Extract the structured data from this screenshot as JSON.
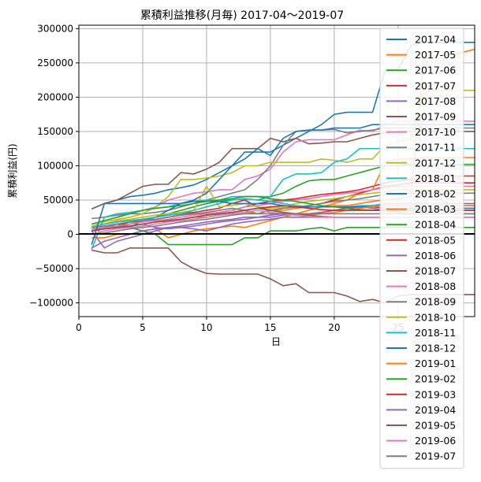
{
  "chart_data": {
    "type": "line",
    "title": "累積利益推移(月毎)  2017-04〜2019-07",
    "xlabel": "日",
    "ylabel": "累積利益(円)",
    "xlim": [
      0,
      31
    ],
    "ylim": [
      -120000,
      305000
    ],
    "xticks": [
      0,
      5,
      10,
      15,
      20,
      25
    ],
    "yticks": [
      -100000,
      -50000,
      0,
      50000,
      100000,
      150000,
      200000,
      250000,
      300000
    ],
    "grid": true,
    "legend_position": "right-upper",
    "x": [
      1,
      2,
      3,
      4,
      5,
      6,
      7,
      8,
      9,
      10,
      11,
      12,
      13,
      14,
      15,
      16,
      17,
      18,
      19,
      20,
      21,
      22,
      23,
      24,
      25,
      26,
      27,
      28,
      29,
      30,
      31
    ],
    "series": [
      {
        "name": "2017-04",
        "color": "#1f77b4",
        "values": [
          37000,
          45000,
          50000,
          55000,
          57000,
          60000,
          65000,
          68000,
          72000,
          80000,
          90000,
          100000,
          120000,
          120000,
          120000,
          130000,
          140000,
          150000,
          160000,
          175000,
          178000,
          178000,
          178000,
          240000,
          240000,
          275000,
          280000,
          280000,
          280000,
          280000,
          280000
        ]
      },
      {
        "name": "2017-05",
        "color": "#ff7f0e",
        "values": [
          10000,
          15000,
          18000,
          20000,
          22000,
          20000,
          18000,
          22000,
          25000,
          25000,
          28000,
          30000,
          32000,
          30000,
          35000,
          35000,
          38000,
          40000,
          40000,
          42000,
          42000,
          45000,
          48000,
          50000,
          52000,
          55000,
          255000,
          260000,
          262000,
          265000,
          270000
        ]
      },
      {
        "name": "2017-06",
        "color": "#2ca02c",
        "values": [
          5000,
          8000,
          10000,
          15000,
          20000,
          25000,
          30000,
          35000,
          40000,
          45000,
          48000,
          50000,
          52000,
          50000,
          55000,
          60000,
          70000,
          78000,
          80000,
          80000,
          85000,
          90000,
          95000,
          100000,
          100000,
          102000,
          102000,
          102000,
          102000,
          102000,
          102000
        ]
      },
      {
        "name": "2017-07",
        "color": "#d62728",
        "values": [
          10000,
          12000,
          15000,
          18000,
          20000,
          22000,
          25000,
          28000,
          30000,
          30000,
          32000,
          35000,
          40000,
          45000,
          48000,
          50000,
          52000,
          55000,
          58000,
          60000,
          62000,
          65000,
          70000,
          75000,
          78000,
          80000,
          82000,
          85000,
          85000,
          85000,
          85000
        ]
      },
      {
        "name": "2017-08",
        "color": "#9467bd",
        "values": [
          5000,
          8000,
          10000,
          12000,
          15000,
          10000,
          8000,
          10000,
          12000,
          15000,
          18000,
          20000,
          22000,
          25000,
          25000,
          28000,
          30000,
          30000,
          32000,
          35000,
          38000,
          40000,
          38000,
          35000,
          32000,
          30000,
          30000,
          30000,
          30000,
          30000,
          30000
        ]
      },
      {
        "name": "2017-09",
        "color": "#8c564b",
        "values": [
          37000,
          45000,
          50000,
          60000,
          70000,
          73000,
          73000,
          90000,
          88000,
          95000,
          105000,
          125000,
          125000,
          125000,
          140000,
          135000,
          140000,
          132000,
          133000,
          135000,
          135000,
          140000,
          145000,
          148000,
          150000,
          150000,
          150000,
          150000,
          150000,
          150000,
          150000
        ]
      },
      {
        "name": "2017-10",
        "color": "#e377c2",
        "values": [
          15000,
          20000,
          25000,
          30000,
          35000,
          40000,
          50000,
          55000,
          60000,
          62000,
          65000,
          65000,
          80000,
          85000,
          95000,
          120000,
          135000,
          138000,
          138000,
          138000,
          145000,
          152000,
          150000,
          160000,
          165000,
          165000,
          165000,
          165000,
          165000,
          165000,
          165000
        ]
      },
      {
        "name": "2017-11",
        "color": "#7f7f7f",
        "values": [
          23000,
          25000,
          28000,
          30000,
          30000,
          32000,
          35000,
          40000,
          45000,
          50000,
          55000,
          60000,
          65000,
          80000,
          100000,
          130000,
          150000,
          152000,
          152000,
          153000,
          148000,
          150000,
          152000,
          155000,
          155000,
          155000,
          155000,
          155000,
          155000,
          155000,
          155000
        ]
      },
      {
        "name": "2017-12",
        "color": "#bcbd22",
        "values": [
          12000,
          18000,
          22000,
          25000,
          30000,
          40000,
          55000,
          80000,
          80000,
          82000,
          85000,
          90000,
          100000,
          100000,
          105000,
          105000,
          105000,
          105000,
          110000,
          108000,
          105000,
          110000,
          110000,
          130000,
          135000,
          140000,
          205000,
          210000,
          210000,
          210000,
          210000
        ]
      },
      {
        "name": "2018-01",
        "color": "#17becf",
        "values": [
          -22000,
          25000,
          30000,
          32000,
          35000,
          38000,
          40000,
          45000,
          48000,
          50000,
          50000,
          55000,
          55000,
          55000,
          55000,
          80000,
          88000,
          88000,
          90000,
          105000,
          110000,
          125000,
          125000,
          125000,
          125000,
          125000,
          125000,
          125000,
          125000,
          125000,
          125000
        ]
      },
      {
        "name": "2018-02",
        "color": "#1f77b4",
        "values": [
          5000,
          10000,
          15000,
          10000,
          20000,
          25000,
          35000,
          45000,
          50000,
          60000,
          80000,
          100000,
          110000,
          125000,
          115000,
          140000,
          150000,
          152000,
          152000,
          155000,
          155000,
          155000,
          160000,
          160000,
          160000,
          160000,
          160000,
          160000,
          160000,
          160000,
          160000
        ]
      },
      {
        "name": "2018-03",
        "color": "#ff7f0e",
        "values": [
          -5000,
          -5000,
          0,
          0,
          5000,
          8000,
          -5000,
          0,
          5000,
          8000,
          10000,
          12000,
          10000,
          15000,
          20000,
          25000,
          30000,
          35000,
          40000,
          45000,
          50000,
          60000,
          65000,
          105000,
          110000,
          110000,
          112000,
          112000,
          112000,
          112000,
          112000
        ]
      },
      {
        "name": "2018-04",
        "color": "#2ca02c",
        "values": [
          10000,
          12000,
          15000,
          10000,
          5000,
          0,
          -15000,
          -15000,
          -15000,
          -15000,
          -15000,
          -15000,
          -5000,
          -5000,
          5000,
          5000,
          5000,
          8000,
          10000,
          5000,
          10000,
          10000,
          10000,
          10000,
          10000,
          10000,
          10000,
          10000,
          10000,
          10000,
          10000
        ]
      },
      {
        "name": "2018-05",
        "color": "#d62728",
        "values": [
          5000,
          10000,
          12000,
          18000,
          22000,
          25000,
          28000,
          30000,
          32000,
          35000,
          38000,
          45000,
          50000,
          40000,
          35000,
          38000,
          40000,
          42000,
          45000,
          50000,
          55000,
          60000,
          65000,
          70000,
          72000,
          75000,
          75000,
          75000,
          75000,
          75000,
          75000
        ]
      },
      {
        "name": "2018-06",
        "color": "#9467bd",
        "values": [
          -20000,
          -10000,
          -5000,
          0,
          5000,
          8000,
          10000,
          12000,
          15000,
          18000,
          20000,
          22000,
          25000,
          25000,
          28000,
          30000,
          30000,
          30000,
          32000,
          35000,
          38000,
          40000,
          42000,
          45000,
          45000,
          45000,
          45000,
          45000,
          45000,
          45000,
          45000
        ]
      },
      {
        "name": "2018-07",
        "color": "#8c564b",
        "values": [
          -23000,
          -27000,
          -27000,
          -20000,
          -20000,
          -20000,
          -20000,
          -40000,
          -50000,
          -57000,
          -58000,
          -58000,
          -58000,
          -58000,
          -65000,
          -75000,
          -72000,
          -85000,
          -85000,
          -85000,
          -90000,
          -98000,
          -95000,
          -100000,
          -90000,
          -88000,
          -88000,
          -88000,
          -88000,
          -88000,
          -88000
        ]
      },
      {
        "name": "2018-08",
        "color": "#e377c2",
        "values": [
          8000,
          10000,
          12000,
          15000,
          18000,
          20000,
          22000,
          25000,
          28000,
          30000,
          32000,
          35000,
          40000,
          42000,
          45000,
          48000,
          50000,
          52000,
          55000,
          58000,
          60000,
          62000,
          65000,
          68000,
          70000,
          70000,
          70000,
          70000,
          70000,
          70000,
          70000
        ]
      },
      {
        "name": "2018-09",
        "color": "#7f7f7f",
        "values": [
          10000,
          12000,
          15000,
          18000,
          20000,
          22000,
          25000,
          28000,
          30000,
          32000,
          35000,
          38000,
          35000,
          30000,
          35000,
          38000,
          40000,
          42000,
          45000,
          48000,
          50000,
          52000,
          55000,
          58000,
          60000,
          60000,
          60000,
          60000,
          60000,
          60000,
          60000
        ]
      },
      {
        "name": "2018-10",
        "color": "#bcbd22",
        "values": [
          10000,
          15000,
          20000,
          22000,
          25000,
          28000,
          30000,
          32000,
          35000,
          70000,
          40000,
          42000,
          45000,
          40000,
          38000,
          40000,
          45000,
          48000,
          50000,
          52000,
          55000,
          58000,
          60000,
          62000,
          65000,
          65000,
          65000,
          65000,
          65000,
          65000,
          65000
        ]
      },
      {
        "name": "2018-11",
        "color": "#17becf",
        "values": [
          10000,
          15000,
          18000,
          20000,
          22000,
          25000,
          28000,
          30000,
          35000,
          40000,
          45000,
          50000,
          52000,
          50000,
          48000,
          45000,
          42000,
          40000,
          40000,
          40000,
          40000,
          42000,
          42000,
          42000,
          42000,
          42000,
          42000,
          42000,
          42000,
          42000,
          42000
        ]
      },
      {
        "name": "2018-12",
        "color": "#1f77b4",
        "values": [
          -15000,
          45000,
          45000,
          45000,
          45000,
          45000,
          45000,
          45000,
          48000,
          48000,
          48000,
          45000,
          45000,
          45000,
          45000,
          42000,
          40000,
          40000,
          40000,
          40000,
          40000,
          40000,
          40000,
          38000,
          38000,
          38000,
          38000,
          38000,
          38000,
          38000,
          38000
        ]
      },
      {
        "name": "2019-01",
        "color": "#ff7f0e",
        "values": [
          5000,
          8000,
          10000,
          12000,
          15000,
          18000,
          20000,
          22000,
          25000,
          28000,
          30000,
          32000,
          35000,
          38000,
          35000,
          32000,
          30000,
          28000,
          30000,
          32000,
          35000,
          38000,
          40000,
          42000,
          42000,
          42000,
          42000,
          42000,
          42000,
          42000,
          42000
        ]
      },
      {
        "name": "2019-02",
        "color": "#2ca02c",
        "values": [
          15000,
          20000,
          25000,
          30000,
          35000,
          38000,
          40000,
          42000,
          45000,
          48000,
          50000,
          52000,
          55000,
          55000,
          52000,
          50000,
          48000,
          45000,
          42000,
          40000,
          38000,
          36000,
          35000,
          35000,
          35000,
          35000,
          35000,
          35000,
          35000,
          35000,
          35000
        ]
      },
      {
        "name": "2019-03",
        "color": "#d62728",
        "values": [
          5000,
          8000,
          10000,
          12000,
          15000,
          18000,
          20000,
          22000,
          25000,
          28000,
          30000,
          32000,
          35000,
          38000,
          40000,
          42000,
          40000,
          38000,
          36000,
          35000,
          35000,
          35000,
          35000,
          35000,
          35000,
          35000,
          35000,
          35000,
          35000,
          35000,
          35000
        ]
      },
      {
        "name": "2019-04",
        "color": "#9467bd",
        "values": [
          5000,
          -20000,
          -10000,
          -5000,
          0,
          5000,
          10000,
          10000,
          8000,
          5000,
          10000,
          15000,
          18000,
          20000,
          22000,
          25000,
          25000,
          25000,
          25000,
          25000,
          25000,
          25000,
          25000,
          25000,
          25000,
          25000,
          25000,
          25000,
          25000,
          25000,
          25000
        ]
      },
      {
        "name": "2019-05",
        "color": "#8c564b",
        "values": [
          5000,
          8000,
          10000,
          12000,
          15000,
          18000,
          20000,
          22000,
          25000,
          28000,
          30000,
          32000,
          35000,
          38000,
          35000,
          32000,
          30000,
          28000,
          26000,
          25000,
          25000,
          25000,
          25000,
          25000,
          25000,
          25000,
          25000,
          25000,
          25000,
          25000,
          25000
        ]
      },
      {
        "name": "2019-06",
        "color": "#e377c2",
        "values": [
          0,
          5000,
          8000,
          10000,
          12000,
          15000,
          18000,
          20000,
          22000,
          25000,
          28000,
          30000,
          32000,
          35000,
          32000,
          30000,
          28000,
          26000,
          25000,
          25000,
          25000,
          25000,
          25000,
          25000,
          25000,
          25000,
          25000,
          25000,
          25000,
          25000,
          25000
        ]
      },
      {
        "name": "2019-07",
        "color": "#7f7f7f",
        "values": [
          0,
          2000,
          5000,
          8000,
          10000,
          12000,
          15000,
          18000,
          20000,
          22000,
          25000,
          28000,
          30000,
          30000,
          30000,
          30000,
          30000,
          30000,
          30000,
          30000,
          30000,
          30000,
          30000,
          30000,
          30000,
          30000,
          30000,
          30000,
          30000,
          30000,
          30000
        ]
      }
    ]
  }
}
